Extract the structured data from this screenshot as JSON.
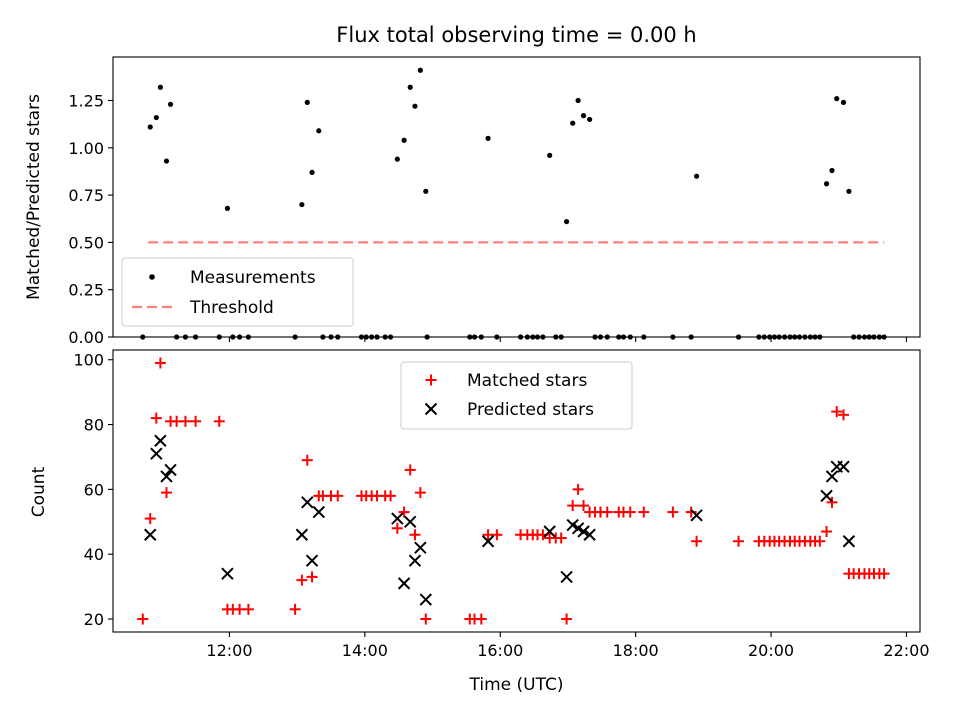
{
  "chart_data": [
    {
      "type": "scatter",
      "title": "Flux total observing time = 0.00 h",
      "ylabel": "Matched/Predicted stars",
      "xlim": [
        10.28,
        22.2
      ],
      "ylim": [
        0.0,
        1.48
      ],
      "yticks": [
        0.0,
        0.25,
        0.5,
        0.75,
        1.0,
        1.25
      ],
      "ytick_labels": [
        "0.00",
        "0.25",
        "0.50",
        "0.75",
        "1.00",
        "1.25"
      ],
      "threshold": {
        "value": 0.5,
        "x_start": 10.8,
        "x_end": 21.67,
        "color": "#ff7f7f"
      },
      "legend_placement": "lower left",
      "series": [
        {
          "name": "Measurements",
          "color": "#000000",
          "points": [
            [
              10.72,
              0
            ],
            [
              10.83,
              1.11
            ],
            [
              10.92,
              1.16
            ],
            [
              10.98,
              1.32
            ],
            [
              11.07,
              0.93
            ],
            [
              11.13,
              1.23
            ],
            [
              11.22,
              0
            ],
            [
              11.35,
              0
            ],
            [
              11.5,
              0
            ],
            [
              11.85,
              0
            ],
            [
              11.97,
              0.68
            ],
            [
              12.05,
              0
            ],
            [
              12.15,
              0
            ],
            [
              12.28,
              0
            ],
            [
              12.97,
              0
            ],
            [
              13.07,
              0.7
            ],
            [
              13.15,
              1.24
            ],
            [
              13.22,
              0.87
            ],
            [
              13.32,
              1.09
            ],
            [
              13.38,
              0
            ],
            [
              13.5,
              0
            ],
            [
              13.6,
              0
            ],
            [
              13.95,
              0
            ],
            [
              14.02,
              0
            ],
            [
              14.1,
              0
            ],
            [
              14.18,
              0
            ],
            [
              14.3,
              0
            ],
            [
              14.38,
              0
            ],
            [
              14.48,
              0.94
            ],
            [
              14.58,
              1.04
            ],
            [
              14.67,
              1.32
            ],
            [
              14.74,
              1.22
            ],
            [
              14.82,
              1.41
            ],
            [
              14.9,
              0.77
            ],
            [
              14.92,
              0
            ],
            [
              15.55,
              0
            ],
            [
              15.62,
              0
            ],
            [
              15.72,
              0
            ],
            [
              15.82,
              1.05
            ],
            [
              15.95,
              0
            ],
            [
              16.3,
              0
            ],
            [
              16.4,
              0
            ],
            [
              16.48,
              0
            ],
            [
              16.55,
              0
            ],
            [
              16.63,
              0
            ],
            [
              16.73,
              0.96
            ],
            [
              16.82,
              0
            ],
            [
              16.9,
              0
            ],
            [
              16.98,
              0.61
            ],
            [
              17.07,
              1.13
            ],
            [
              17.15,
              1.25
            ],
            [
              17.23,
              1.17
            ],
            [
              17.32,
              1.15
            ],
            [
              17.4,
              0
            ],
            [
              17.48,
              0
            ],
            [
              17.58,
              0
            ],
            [
              17.75,
              0
            ],
            [
              17.82,
              0
            ],
            [
              17.92,
              0
            ],
            [
              18.12,
              0
            ],
            [
              18.55,
              0
            ],
            [
              18.82,
              0
            ],
            [
              18.9,
              0.85
            ],
            [
              19.52,
              0
            ],
            [
              19.82,
              0
            ],
            [
              19.9,
              0
            ],
            [
              19.98,
              0
            ],
            [
              20.05,
              0
            ],
            [
              20.12,
              0
            ],
            [
              20.2,
              0
            ],
            [
              20.28,
              0
            ],
            [
              20.35,
              0
            ],
            [
              20.42,
              0
            ],
            [
              20.5,
              0
            ],
            [
              20.58,
              0
            ],
            [
              20.65,
              0
            ],
            [
              20.72,
              0
            ],
            [
              20.82,
              0.81
            ],
            [
              20.9,
              0.88
            ],
            [
              20.97,
              1.26
            ],
            [
              21.07,
              1.24
            ],
            [
              21.15,
              0.77
            ],
            [
              21.22,
              0
            ],
            [
              21.3,
              0
            ],
            [
              21.38,
              0
            ],
            [
              21.45,
              0
            ],
            [
              21.52,
              0
            ],
            [
              21.6,
              0
            ],
            [
              21.67,
              0
            ]
          ]
        }
      ]
    },
    {
      "type": "scatter",
      "xlabel": "Time (UTC)",
      "ylabel": "Count",
      "xlim": [
        10.28,
        22.2
      ],
      "ylim": [
        16,
        103
      ],
      "xticks": [
        12,
        14,
        16,
        18,
        20,
        22
      ],
      "xtick_labels": [
        "12:00",
        "14:00",
        "16:00",
        "18:00",
        "20:00",
        "22:00"
      ],
      "yticks": [
        20,
        40,
        60,
        80,
        100
      ],
      "ytick_labels": [
        "20",
        "40",
        "60",
        "80",
        "100"
      ],
      "legend_placement": "upper center",
      "series": [
        {
          "name": "Matched stars",
          "marker": "plus",
          "color": "#ff0000",
          "points": [
            [
              10.72,
              20
            ],
            [
              10.83,
              51
            ],
            [
              10.92,
              82
            ],
            [
              10.98,
              99
            ],
            [
              11.07,
              59
            ],
            [
              11.13,
              81
            ],
            [
              11.22,
              81
            ],
            [
              11.35,
              81
            ],
            [
              11.5,
              81
            ],
            [
              11.85,
              81
            ],
            [
              11.97,
              23
            ],
            [
              12.05,
              23
            ],
            [
              12.15,
              23
            ],
            [
              12.28,
              23
            ],
            [
              12.97,
              23
            ],
            [
              13.07,
              32
            ],
            [
              13.15,
              69
            ],
            [
              13.22,
              33
            ],
            [
              13.32,
              58
            ],
            [
              13.38,
              58
            ],
            [
              13.5,
              58
            ],
            [
              13.6,
              58
            ],
            [
              13.95,
              58
            ],
            [
              14.02,
              58
            ],
            [
              14.1,
              58
            ],
            [
              14.18,
              58
            ],
            [
              14.3,
              58
            ],
            [
              14.38,
              58
            ],
            [
              14.48,
              48
            ],
            [
              14.58,
              53
            ],
            [
              14.67,
              66
            ],
            [
              14.74,
              46
            ],
            [
              14.82,
              59
            ],
            [
              14.9,
              20
            ],
            [
              15.55,
              20
            ],
            [
              15.62,
              20
            ],
            [
              15.72,
              20
            ],
            [
              15.82,
              46
            ],
            [
              15.95,
              46
            ],
            [
              16.3,
              46
            ],
            [
              16.4,
              46
            ],
            [
              16.48,
              46
            ],
            [
              16.55,
              46
            ],
            [
              16.63,
              46
            ],
            [
              16.73,
              45
            ],
            [
              16.82,
              45
            ],
            [
              16.9,
              45
            ],
            [
              16.98,
              20
            ],
            [
              17.07,
              55
            ],
            [
              17.15,
              60
            ],
            [
              17.23,
              55
            ],
            [
              17.32,
              53
            ],
            [
              17.4,
              53
            ],
            [
              17.48,
              53
            ],
            [
              17.58,
              53
            ],
            [
              17.75,
              53
            ],
            [
              17.82,
              53
            ],
            [
              17.92,
              53
            ],
            [
              18.12,
              53
            ],
            [
              18.55,
              53
            ],
            [
              18.82,
              53
            ],
            [
              18.9,
              44
            ],
            [
              19.52,
              44
            ],
            [
              19.82,
              44
            ],
            [
              19.9,
              44
            ],
            [
              19.98,
              44
            ],
            [
              20.05,
              44
            ],
            [
              20.12,
              44
            ],
            [
              20.2,
              44
            ],
            [
              20.28,
              44
            ],
            [
              20.35,
              44
            ],
            [
              20.42,
              44
            ],
            [
              20.5,
              44
            ],
            [
              20.58,
              44
            ],
            [
              20.65,
              44
            ],
            [
              20.72,
              44
            ],
            [
              20.82,
              47
            ],
            [
              20.9,
              56
            ],
            [
              20.97,
              84
            ],
            [
              21.07,
              83
            ],
            [
              21.15,
              34
            ],
            [
              21.22,
              34
            ],
            [
              21.3,
              34
            ],
            [
              21.38,
              34
            ],
            [
              21.45,
              34
            ],
            [
              21.52,
              34
            ],
            [
              21.6,
              34
            ],
            [
              21.67,
              34
            ]
          ]
        },
        {
          "name": "Predicted stars",
          "marker": "x",
          "color": "#000000",
          "points": [
            [
              10.83,
              46
            ],
            [
              10.92,
              71
            ],
            [
              10.98,
              75
            ],
            [
              11.07,
              64
            ],
            [
              11.13,
              66
            ],
            [
              11.97,
              34
            ],
            [
              13.07,
              46
            ],
            [
              13.15,
              56
            ],
            [
              13.22,
              38
            ],
            [
              13.32,
              53
            ],
            [
              14.48,
              51
            ],
            [
              14.58,
              31
            ],
            [
              14.67,
              50
            ],
            [
              14.74,
              38
            ],
            [
              14.82,
              42
            ],
            [
              14.9,
              26
            ],
            [
              15.82,
              44
            ],
            [
              16.73,
              47
            ],
            [
              16.98,
              33
            ],
            [
              17.07,
              49
            ],
            [
              17.15,
              48
            ],
            [
              17.23,
              47
            ],
            [
              17.32,
              46
            ],
            [
              18.9,
              52
            ],
            [
              20.82,
              58
            ],
            [
              20.9,
              64
            ],
            [
              20.97,
              67
            ],
            [
              21.07,
              67
            ],
            [
              21.15,
              44
            ]
          ]
        }
      ]
    }
  ]
}
